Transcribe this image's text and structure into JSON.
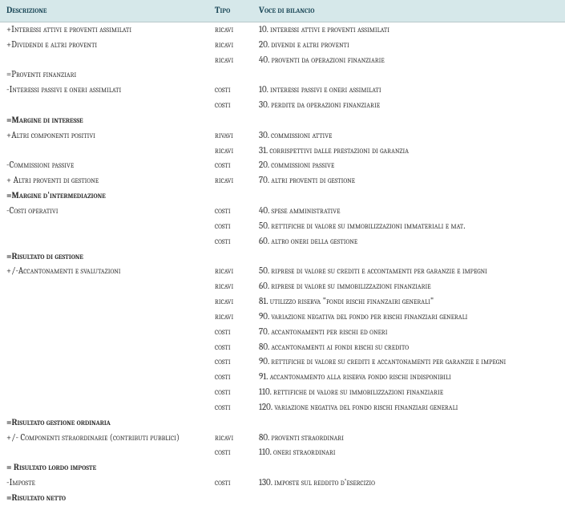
{
  "headers": {
    "descrizione": "Descrizione",
    "tipo": "Tipo",
    "voce": "Voce di bilancio"
  },
  "rows": [
    {
      "desc": "+Interessi attivi e proventi assimilati",
      "tipo": "ricavi",
      "voce": "10. interessi attivi e proventi assimilati",
      "bold": false
    },
    {
      "desc": "+Dividendi e altri proventi",
      "tipo": "ricavi",
      "voce": "20. divendi e altri proventi",
      "bold": false
    },
    {
      "desc": "",
      "tipo": "ricavi",
      "voce": "40. proventi da operazioni finanziarie",
      "bold": false
    },
    {
      "desc": "=Proventi finanziari",
      "tipo": "",
      "voce": "",
      "bold": false
    },
    {
      "desc": "-Interessi passivi e oneri assimilati",
      "tipo": "costi",
      "voce": "10. interessi passivi e oneri assimilati",
      "bold": false
    },
    {
      "desc": "",
      "tipo": "costi",
      "voce": "30. perdite da operazioni finanziarie",
      "bold": false
    },
    {
      "desc": "=Margine di interesse",
      "tipo": "",
      "voce": "",
      "bold": true
    },
    {
      "desc": "+Altri componenti positivi",
      "tipo": "rivavi",
      "voce": "30. commissioni attive",
      "bold": false
    },
    {
      "desc": "",
      "tipo": "ricavi",
      "voce": "31. corrispettivi dalle prestazioni di garanzia",
      "bold": false
    },
    {
      "desc": "-Commissioni passive",
      "tipo": "costi",
      "voce": "20. commissioni passive",
      "bold": false
    },
    {
      "desc": "+ Altri proventi di gestione",
      "tipo": "ricavi",
      "voce": "70. altri proventi di gestione",
      "bold": false
    },
    {
      "desc": "=Margine d'intermediazione",
      "tipo": "",
      "voce": "",
      "bold": true
    },
    {
      "desc": "-Costi operativi",
      "tipo": "costi",
      "voce": "40. spese amministrative",
      "bold": false
    },
    {
      "desc": "",
      "tipo": "costi",
      "voce": "50. rettifiche di valore su immobilizzazioni immateriali  e mat.",
      "bold": false
    },
    {
      "desc": "",
      "tipo": "costi",
      "voce": "60. altro oneri della gestione",
      "bold": false
    },
    {
      "desc": "=Risultato di gestione",
      "tipo": "",
      "voce": "",
      "bold": true
    },
    {
      "desc": "+/-Accantonamenti e svalutazioni",
      "tipo": "ricavi",
      "voce": "50. riprese di valore su crediti e accontamenti per garanzie e impegni",
      "bold": false
    },
    {
      "desc": "",
      "tipo": "ricavi",
      "voce": "60. riprese di valore su immobilizzazioni finanziarie",
      "bold": false
    },
    {
      "desc": "",
      "tipo": "ricavi",
      "voce": "81. utilizzo riserva \"fondi rischi finanzairi generali\"",
      "bold": false
    },
    {
      "desc": "",
      "tipo": "ricavi",
      "voce": "90. variazione negativa del fondo per rischi finanziari generali",
      "bold": false
    },
    {
      "desc": "",
      "tipo": "costi",
      "voce": "70. accantonamenti per rischi ed oneri",
      "bold": false
    },
    {
      "desc": "",
      "tipo": "costi",
      "voce": "80. accantonamenti ai fondi rischi su credito",
      "bold": false
    },
    {
      "desc": "",
      "tipo": "costi",
      "voce": "90. rettifiche di valore su crediti e accantonamenti per garanzie e impegni",
      "bold": false
    },
    {
      "desc": "",
      "tipo": "costi",
      "voce": "91. accantonamento alla riserva fondo rischi indisponibili",
      "bold": false
    },
    {
      "desc": "",
      "tipo": "costi",
      "voce": "110. rettifiche di valore su immobilizzazioni finanziarie",
      "bold": false
    },
    {
      "desc": "",
      "tipo": "costi",
      "voce": "120. variazione negativa del fondo rischi finanziari generali",
      "bold": false
    },
    {
      "desc": "=Risultato gestione ordinaria",
      "tipo": "",
      "voce": "",
      "bold": true
    },
    {
      "desc": "+/- Componenti straordinarie (contributi pubblici)",
      "tipo": "ricavi",
      "voce": "80. proventi straordinari",
      "bold": false
    },
    {
      "desc": "",
      "tipo": "costi",
      "voce": "110. oneri straordinari",
      "bold": false
    },
    {
      "desc": "= Risultato lordo imposte",
      "tipo": "",
      "voce": "",
      "bold": true
    },
    {
      "desc": "-Imposte",
      "tipo": "costi",
      "voce": "130. imposte sul reddito d'esercizio",
      "bold": false
    },
    {
      "desc": "=Risultato netto",
      "tipo": "",
      "voce": "",
      "bold": true
    }
  ]
}
